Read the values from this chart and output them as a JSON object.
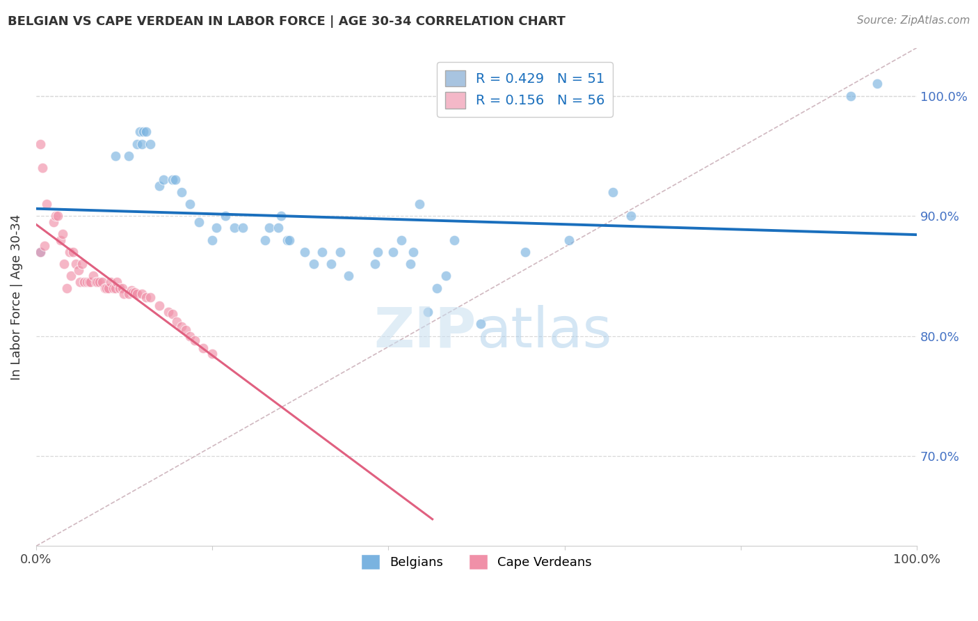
{
  "title": "BELGIAN VS CAPE VERDEAN IN LABOR FORCE | AGE 30-34 CORRELATION CHART",
  "source": "Source: ZipAtlas.com",
  "ylabel": "In Labor Force | Age 30-34",
  "xlim": [
    0.0,
    1.0
  ],
  "ylim": [
    0.625,
    1.04
  ],
  "yticks": [
    0.7,
    0.8,
    0.9,
    1.0
  ],
  "ytick_labels": [
    "70.0%",
    "80.0%",
    "90.0%",
    "100.0%"
  ],
  "watermark": "ZIPatlas",
  "belgian_color": "#7ab3e0",
  "capeverdean_color": "#f090a8",
  "trendline_belgian_color": "#1a6fbd",
  "trendline_capeverdean_color": "#e06080",
  "dashed_line_color": "#d0b8c0",
  "legend_blue_label": "R = 0.429   N = 51",
  "legend_pink_label": "R = 0.156   N = 56",
  "legend_blue_color": "#a8c4e0",
  "legend_pink_color": "#f4b8c8",
  "belgian_x": [
    0.005,
    0.09,
    0.105,
    0.115,
    0.118,
    0.12,
    0.122,
    0.125,
    0.13,
    0.14,
    0.145,
    0.155,
    0.158,
    0.165,
    0.175,
    0.185,
    0.2,
    0.205,
    0.215,
    0.225,
    0.235,
    0.26,
    0.265,
    0.275,
    0.278,
    0.285,
    0.288,
    0.305,
    0.315,
    0.325,
    0.335,
    0.345,
    0.355,
    0.385,
    0.388,
    0.405,
    0.415,
    0.425,
    0.428,
    0.435,
    0.445,
    0.455,
    0.465,
    0.475,
    0.505,
    0.555,
    0.605,
    0.655,
    0.675,
    0.925,
    0.955
  ],
  "belgian_y": [
    0.87,
    0.95,
    0.95,
    0.96,
    0.97,
    0.96,
    0.97,
    0.97,
    0.96,
    0.925,
    0.93,
    0.93,
    0.93,
    0.92,
    0.91,
    0.895,
    0.88,
    0.89,
    0.9,
    0.89,
    0.89,
    0.88,
    0.89,
    0.89,
    0.9,
    0.88,
    0.88,
    0.87,
    0.86,
    0.87,
    0.86,
    0.87,
    0.85,
    0.86,
    0.87,
    0.87,
    0.88,
    0.86,
    0.87,
    0.91,
    0.82,
    0.84,
    0.85,
    0.88,
    0.81,
    0.87,
    0.88,
    0.92,
    0.9,
    1.0,
    1.01
  ],
  "capeverdean_x": [
    0.005,
    0.005,
    0.007,
    0.01,
    0.012,
    0.02,
    0.022,
    0.025,
    0.028,
    0.03,
    0.032,
    0.035,
    0.038,
    0.04,
    0.042,
    0.045,
    0.048,
    0.05,
    0.052,
    0.055,
    0.058,
    0.06,
    0.062,
    0.065,
    0.068,
    0.07,
    0.072,
    0.075,
    0.078,
    0.08,
    0.082,
    0.085,
    0.088,
    0.09,
    0.092,
    0.095,
    0.098,
    0.1,
    0.105,
    0.108,
    0.11,
    0.112,
    0.115,
    0.12,
    0.125,
    0.13,
    0.14,
    0.15,
    0.155,
    0.16,
    0.165,
    0.17,
    0.175,
    0.18,
    0.19,
    0.2
  ],
  "capeverdean_y": [
    0.96,
    0.87,
    0.94,
    0.875,
    0.91,
    0.895,
    0.9,
    0.9,
    0.88,
    0.885,
    0.86,
    0.84,
    0.87,
    0.85,
    0.87,
    0.86,
    0.855,
    0.845,
    0.86,
    0.845,
    0.845,
    0.845,
    0.845,
    0.85,
    0.845,
    0.845,
    0.845,
    0.845,
    0.84,
    0.84,
    0.84,
    0.845,
    0.84,
    0.84,
    0.845,
    0.84,
    0.84,
    0.835,
    0.835,
    0.838,
    0.836,
    0.836,
    0.835,
    0.835,
    0.832,
    0.832,
    0.825,
    0.82,
    0.818,
    0.812,
    0.808,
    0.805,
    0.8,
    0.796,
    0.79,
    0.785
  ],
  "ref_line_x": [
    0.0,
    1.0
  ],
  "ref_line_y": [
    0.625,
    1.04
  ]
}
